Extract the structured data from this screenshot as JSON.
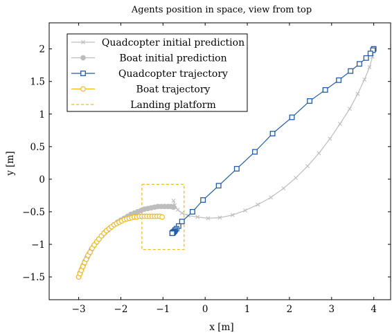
{
  "chart_data": {
    "type": "line",
    "title": "Agents position in space, view from top",
    "xlabel": "x [m]",
    "ylabel": "y [m]",
    "xlim": [
      -3.7,
      4.4
    ],
    "ylim": [
      -1.85,
      2.4
    ],
    "xticks": [
      -3,
      -2,
      -1,
      0,
      1,
      2,
      3,
      4
    ],
    "yticks": [
      -1.5,
      -1,
      -0.5,
      0,
      0.5,
      1,
      1.5,
      2
    ],
    "xtick_labels": [
      "−3",
      "−2",
      "−1",
      "0",
      "1",
      "2",
      "3",
      "4"
    ],
    "ytick_labels": [
      "−1.5",
      "−1",
      "−0.5",
      "0",
      "0.5",
      "1",
      "1.5",
      "2"
    ],
    "grid": false,
    "legend_position": "top-left",
    "series": [
      {
        "name": "Quadcopter initial prediction",
        "color": "#bdbdbd",
        "marker": "x",
        "x": [
          4.0,
          3.97,
          3.9,
          3.78,
          3.62,
          3.43,
          3.2,
          2.96,
          2.7,
          2.43,
          2.15,
          1.86,
          1.56,
          1.25,
          0.95,
          0.65,
          0.35,
          0.07,
          -0.18,
          -0.4,
          -0.55,
          -0.65,
          -0.72,
          -0.75
        ],
        "y": [
          2.0,
          1.88,
          1.72,
          1.53,
          1.31,
          1.08,
          0.85,
          0.62,
          0.4,
          0.2,
          0.02,
          -0.14,
          -0.28,
          -0.39,
          -0.48,
          -0.55,
          -0.59,
          -0.6,
          -0.58,
          -0.56,
          -0.52,
          -0.47,
          -0.4,
          -0.33
        ]
      },
      {
        "name": "Boat initial prediction",
        "color": "#bdbdbd",
        "marker": "circle",
        "x": [
          -3.0,
          -2.97,
          -2.93,
          -2.89,
          -2.85,
          -2.8,
          -2.75,
          -2.7,
          -2.64,
          -2.58,
          -2.52,
          -2.45,
          -2.38,
          -2.31,
          -2.24,
          -2.16,
          -2.08,
          -2.0,
          -1.92,
          -1.84,
          -1.76,
          -1.68,
          -1.6,
          -1.52,
          -1.44,
          -1.36,
          -1.28,
          -1.2,
          -1.12,
          -1.04,
          -0.96,
          -0.88,
          -0.81,
          -0.75
        ],
        "y": [
          -1.5,
          -1.44,
          -1.38,
          -1.32,
          -1.26,
          -1.2,
          -1.14,
          -1.08,
          -1.02,
          -0.97,
          -0.92,
          -0.87,
          -0.82,
          -0.78,
          -0.74,
          -0.7,
          -0.66,
          -0.63,
          -0.6,
          -0.57,
          -0.54,
          -0.52,
          -0.5,
          -0.48,
          -0.46,
          -0.45,
          -0.44,
          -0.43,
          -0.42,
          -0.42,
          -0.42,
          -0.42,
          -0.42,
          -0.43
        ]
      },
      {
        "name": "Quadcopter trajectory",
        "color": "#1f5ba8",
        "marker": "square",
        "x": [
          4.0,
          3.98,
          3.92,
          3.82,
          3.66,
          3.45,
          3.17,
          2.85,
          2.48,
          2.06,
          1.6,
          1.18,
          0.75,
          0.32,
          -0.05,
          -0.3,
          -0.55,
          -0.63,
          -0.68,
          -0.71,
          -0.73,
          -0.75,
          -0.76,
          -0.77,
          -0.78,
          -0.78
        ],
        "y": [
          2.0,
          1.98,
          1.93,
          1.86,
          1.77,
          1.66,
          1.52,
          1.37,
          1.2,
          0.95,
          0.7,
          0.42,
          0.16,
          -0.1,
          -0.32,
          -0.5,
          -0.65,
          -0.72,
          -0.76,
          -0.78,
          -0.8,
          -0.81,
          -0.82,
          -0.82,
          -0.83,
          -0.83
        ]
      },
      {
        "name": "Boat trajectory",
        "color": "#f5b820",
        "marker": "circle-open",
        "x": [
          -3.0,
          -2.97,
          -2.94,
          -2.9,
          -2.86,
          -2.82,
          -2.78,
          -2.73,
          -2.68,
          -2.63,
          -2.57,
          -2.52,
          -2.46,
          -2.4,
          -2.34,
          -2.28,
          -2.22,
          -2.16,
          -2.1,
          -2.04,
          -1.98,
          -1.92,
          -1.86,
          -1.8,
          -1.74,
          -1.68,
          -1.62,
          -1.56,
          -1.5,
          -1.44,
          -1.38,
          -1.32,
          -1.26,
          -1.2,
          -1.14,
          -1.08,
          -1.02
        ],
        "y": [
          -1.5,
          -1.45,
          -1.4,
          -1.34,
          -1.28,
          -1.23,
          -1.17,
          -1.12,
          -1.06,
          -1.01,
          -0.96,
          -0.92,
          -0.87,
          -0.83,
          -0.79,
          -0.76,
          -0.73,
          -0.7,
          -0.68,
          -0.66,
          -0.64,
          -0.62,
          -0.61,
          -0.6,
          -0.59,
          -0.58,
          -0.58,
          -0.57,
          -0.57,
          -0.57,
          -0.57,
          -0.57,
          -0.57,
          -0.57,
          -0.57,
          -0.57,
          -0.58
        ]
      },
      {
        "name": "Landing platform",
        "color": "#f5b820",
        "marker": "none",
        "dashed": true,
        "x": [
          -1.5,
          -0.5,
          -0.5,
          -1.5,
          -1.5
        ],
        "y": [
          -0.08,
          -0.08,
          -1.08,
          -1.08,
          -0.08
        ]
      }
    ]
  }
}
